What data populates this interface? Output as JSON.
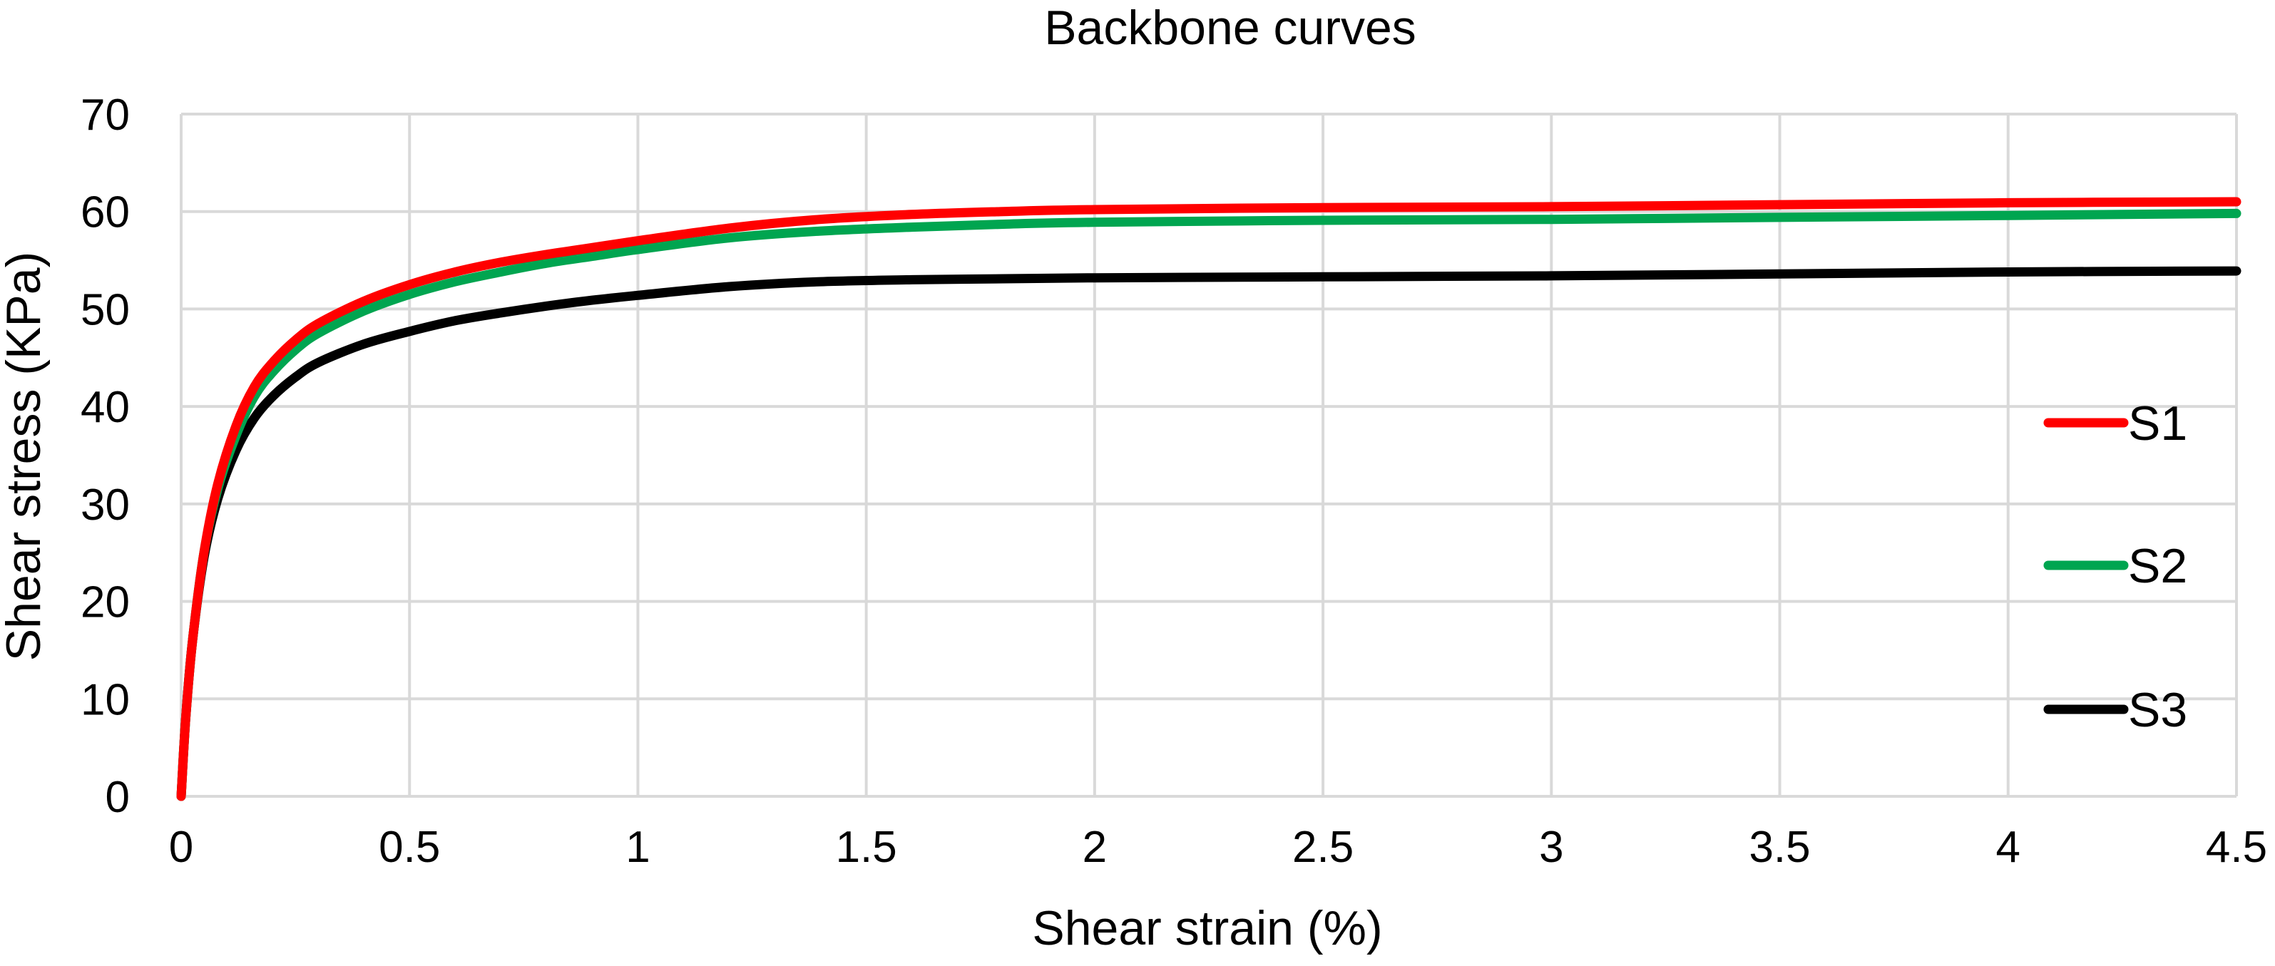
{
  "chart_data": {
    "type": "line",
    "title": "Backbone curves",
    "xlabel": "Shear strain (%)",
    "ylabel": "Shear stress (KPa)",
    "xlim": [
      0,
      4.5
    ],
    "ylim": [
      0,
      70
    ],
    "x_ticks": [
      0,
      0.5,
      1,
      1.5,
      2,
      2.5,
      3,
      3.5,
      4,
      4.5
    ],
    "x_tick_labels": [
      "0",
      "0.5",
      "1",
      "1.5",
      "2",
      "2.5",
      "3",
      "3.5",
      "4",
      "4.5"
    ],
    "y_ticks": [
      0,
      10,
      20,
      30,
      40,
      50,
      60,
      70
    ],
    "y_tick_labels": [
      "0",
      "10",
      "20",
      "30",
      "40",
      "50",
      "60",
      "70"
    ],
    "grid": true,
    "legend_position": "right",
    "series": [
      {
        "name": "S1",
        "color": "#ff0000",
        "x": [
          0,
          0.01,
          0.025,
          0.05,
          0.08,
          0.12,
          0.16,
          0.2,
          0.25,
          0.3,
          0.4,
          0.5,
          0.6,
          0.7,
          0.8,
          0.9,
          1.0,
          1.2,
          1.4,
          1.6,
          1.8,
          2.0,
          2.5,
          3.0,
          3.5,
          4.0,
          4.5
        ],
        "y": [
          0,
          8,
          16,
          25,
          32,
          38,
          42,
          44.5,
          46.8,
          48.5,
          50.8,
          52.5,
          53.8,
          54.8,
          55.6,
          56.3,
          57.0,
          58.3,
          59.2,
          59.7,
          60.0,
          60.2,
          60.4,
          60.5,
          60.7,
          60.9,
          61.0
        ]
      },
      {
        "name": "S2",
        "color": "#00a550",
        "x": [
          0,
          0.01,
          0.025,
          0.05,
          0.08,
          0.12,
          0.16,
          0.2,
          0.25,
          0.3,
          0.4,
          0.5,
          0.6,
          0.7,
          0.8,
          0.9,
          1.0,
          1.2,
          1.4,
          1.6,
          1.8,
          2.0,
          2.5,
          3.0,
          3.5,
          4.0,
          4.5
        ],
        "y": [
          0,
          8,
          16,
          25,
          31.5,
          37,
          41,
          43.5,
          45.8,
          47.5,
          49.8,
          51.5,
          52.8,
          53.8,
          54.7,
          55.4,
          56.1,
          57.3,
          58.0,
          58.4,
          58.7,
          58.9,
          59.1,
          59.2,
          59.4,
          59.6,
          59.8
        ]
      },
      {
        "name": "S3",
        "color": "#000000",
        "x": [
          0,
          0.01,
          0.025,
          0.05,
          0.08,
          0.12,
          0.16,
          0.2,
          0.25,
          0.3,
          0.4,
          0.5,
          0.6,
          0.7,
          0.8,
          0.9,
          1.0,
          1.2,
          1.4,
          1.6,
          1.8,
          2.0,
          2.5,
          3.0,
          3.5,
          4.0,
          4.5
        ],
        "y": [
          0,
          8,
          16,
          24.5,
          30.5,
          35.5,
          38.8,
          41.0,
          43.0,
          44.5,
          46.4,
          47.7,
          48.8,
          49.6,
          50.3,
          50.9,
          51.4,
          52.3,
          52.8,
          53.0,
          53.1,
          53.2,
          53.3,
          53.4,
          53.6,
          53.8,
          53.9
        ]
      }
    ]
  }
}
